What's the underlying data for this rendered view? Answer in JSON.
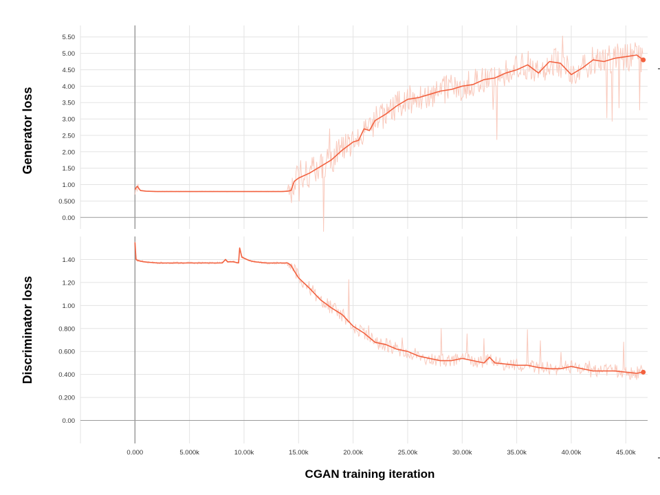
{
  "colors": {
    "series": "#f2613f",
    "raw": "#f9c9bc",
    "grid": "#e3e3e3",
    "zero_axis": "#9a9a9a"
  },
  "x_ticks": [
    {
      "value": 0,
      "label": "0.000"
    },
    {
      "value": 5000,
      "label": "5.000k"
    },
    {
      "value": 10000,
      "label": "10.00k"
    },
    {
      "value": 15000,
      "label": "15.00k"
    },
    {
      "value": 20000,
      "label": "20.00k"
    },
    {
      "value": 25000,
      "label": "25.00k"
    },
    {
      "value": 30000,
      "label": "30.00k"
    },
    {
      "value": 35000,
      "label": "35.00k"
    },
    {
      "value": 40000,
      "label": "40.00k"
    },
    {
      "value": 45000,
      "label": "45.00k"
    }
  ],
  "xlabel": "CGAN training iteration",
  "chart_data": [
    {
      "type": "line",
      "ylabel": "Generator loss",
      "xlim": [
        -5000,
        47000
      ],
      "ylim": [
        -0.35,
        5.85
      ],
      "grid": true,
      "y_ticks": [
        "0.00",
        "0.500",
        "1.00",
        "1.50",
        "2.00",
        "2.50",
        "3.00",
        "3.50",
        "4.00",
        "4.50",
        "5.00",
        "5.50"
      ],
      "y_tick_values": [
        0,
        0.5,
        1.0,
        1.5,
        2.0,
        2.5,
        3.0,
        3.5,
        4.0,
        4.5,
        5.0,
        5.5
      ],
      "series": [
        {
          "x": [
            0,
            200,
            500,
            1000,
            2000,
            4000,
            6000,
            8000,
            10000,
            12000,
            13500,
            14000,
            14300,
            14600,
            15000,
            16000,
            17000,
            18000,
            19000,
            20000,
            20500,
            21000,
            21500,
            22000,
            23000,
            24000,
            25000,
            26000,
            27000,
            28000,
            29000,
            30000,
            31000,
            32000,
            33000,
            34000,
            35000,
            36000,
            37000,
            38000,
            39000,
            40000,
            41000,
            42000,
            43000,
            44000,
            45000,
            46000,
            46600
          ],
          "y": [
            0.85,
            0.95,
            0.82,
            0.8,
            0.79,
            0.79,
            0.79,
            0.79,
            0.79,
            0.79,
            0.79,
            0.8,
            0.82,
            1.1,
            1.2,
            1.35,
            1.55,
            1.75,
            2.05,
            2.3,
            2.35,
            2.7,
            2.65,
            2.95,
            3.15,
            3.4,
            3.6,
            3.65,
            3.75,
            3.85,
            3.9,
            4.0,
            4.05,
            4.2,
            4.25,
            4.4,
            4.5,
            4.65,
            4.4,
            4.75,
            4.7,
            4.35,
            4.55,
            4.8,
            4.75,
            4.85,
            4.9,
            4.95,
            4.8
          ]
        }
      ]
    },
    {
      "type": "line",
      "ylabel": "Discriminator loss",
      "xlim": [
        -5000,
        47000
      ],
      "ylim": [
        -0.2,
        1.6
      ],
      "grid": true,
      "y_ticks": [
        "0.00",
        "0.200",
        "0.400",
        "0.600",
        "0.800",
        "1.00",
        "1.20",
        "1.40"
      ],
      "y_tick_values": [
        0,
        0.2,
        0.4,
        0.6,
        0.8,
        1.0,
        1.2,
        1.4
      ],
      "series": [
        {
          "x": [
            0,
            100,
            300,
            800,
            2000,
            4000,
            6000,
            8000,
            8300,
            8500,
            9000,
            9500,
            9600,
            9800,
            10500,
            11000,
            12000,
            13500,
            14000,
            14300,
            14600,
            15000,
            16000,
            17000,
            18000,
            19000,
            20000,
            21000,
            22000,
            23000,
            24000,
            25000,
            26000,
            27000,
            28000,
            29000,
            30000,
            31000,
            32000,
            32500,
            33000,
            34000,
            35000,
            36000,
            37000,
            38000,
            39000,
            40000,
            41000,
            42000,
            43000,
            44000,
            45000,
            46000,
            46600
          ],
          "y": [
            1.55,
            1.4,
            1.39,
            1.38,
            1.37,
            1.37,
            1.37,
            1.37,
            1.4,
            1.38,
            1.38,
            1.37,
            1.5,
            1.42,
            1.39,
            1.38,
            1.37,
            1.37,
            1.37,
            1.35,
            1.3,
            1.24,
            1.15,
            1.05,
            0.98,
            0.92,
            0.82,
            0.76,
            0.68,
            0.66,
            0.62,
            0.6,
            0.56,
            0.54,
            0.52,
            0.52,
            0.54,
            0.52,
            0.5,
            0.55,
            0.5,
            0.49,
            0.48,
            0.48,
            0.46,
            0.45,
            0.45,
            0.47,
            0.45,
            0.43,
            0.43,
            0.43,
            0.42,
            0.41,
            0.42
          ]
        }
      ]
    }
  ]
}
